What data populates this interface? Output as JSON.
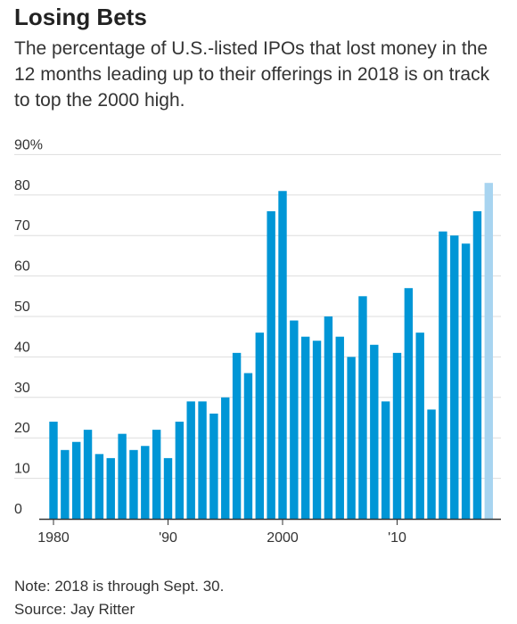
{
  "header": {
    "title": "Losing Bets",
    "subtitle": "The percentage of U.S.-listed IPOs that lost money in the 12 months leading up to their offerings in 2018 is on track to top the 2000 high."
  },
  "footer": {
    "note": "Note: 2018 is through Sept. 30.",
    "source": "Source: Jay Ritter"
  },
  "colors": {
    "bar": "#0096d6",
    "highlight": "#a8d4f0",
    "grid": "#dddddd",
    "axis": "#333333"
  },
  "chart_data": {
    "type": "bar",
    "title": "Losing Bets",
    "xlabel": "",
    "ylabel": "",
    "ylim": [
      0,
      90
    ],
    "y_ticks": [
      0,
      10,
      20,
      30,
      40,
      50,
      60,
      70,
      80,
      90
    ],
    "y_tick_labels": [
      "0",
      "10",
      "20",
      "30",
      "40",
      "50",
      "60",
      "70",
      "80",
      "90%"
    ],
    "x_tick_labels": [
      {
        "year": 1980,
        "label": "1980"
      },
      {
        "year": 1990,
        "label": "'90"
      },
      {
        "year": 2000,
        "label": "2000"
      },
      {
        "year": 2010,
        "label": "'10"
      }
    ],
    "highlight_category": 2018,
    "grid": true,
    "categories": [
      1980,
      1981,
      1982,
      1983,
      1984,
      1985,
      1986,
      1987,
      1988,
      1989,
      1990,
      1991,
      1992,
      1993,
      1994,
      1995,
      1996,
      1997,
      1998,
      1999,
      2000,
      2001,
      2002,
      2003,
      2004,
      2005,
      2006,
      2007,
      2008,
      2009,
      2010,
      2011,
      2012,
      2013,
      2014,
      2015,
      2016,
      2017,
      2018
    ],
    "values": [
      24,
      17,
      19,
      22,
      16,
      15,
      21,
      17,
      18,
      22,
      15,
      24,
      29,
      29,
      26,
      30,
      41,
      36,
      46,
      76,
      81,
      49,
      45,
      44,
      50,
      45,
      40,
      55,
      43,
      29,
      41,
      57,
      46,
      27,
      71,
      70,
      68,
      76,
      83
    ]
  }
}
